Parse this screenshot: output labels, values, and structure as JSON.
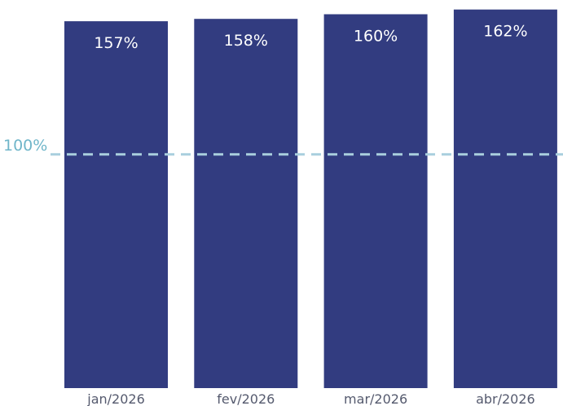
{
  "chart_data": {
    "type": "bar",
    "categories": [
      "jan/2026",
      "fev/2026",
      "mar/2026",
      "abr/2026"
    ],
    "values": [
      157,
      158,
      160,
      162
    ],
    "value_labels": [
      "157%",
      "158%",
      "160%",
      "162%"
    ],
    "ylim": [
      0,
      164
    ],
    "reference_line": {
      "value": 100,
      "label": "100%",
      "style": "dashed"
    },
    "grid": false,
    "legend": "none",
    "colors": {
      "bar": "#323c80",
      "bar_label": "#ffffff",
      "reference_line": "#a9cfde",
      "reference_label": "#6fb5c9",
      "tick_label": "#555a6e"
    }
  }
}
